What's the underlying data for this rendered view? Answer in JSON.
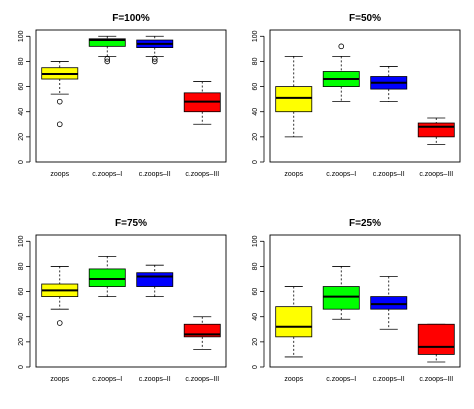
{
  "chart_data": [
    {
      "type": "box",
      "title": "F=100%",
      "ylim": [
        0,
        105
      ],
      "yticks": [
        0,
        20,
        40,
        60,
        80,
        100
      ],
      "categories": [
        "zoops",
        "c.zoops–I",
        "c.zoops–II",
        "c.zoops–III"
      ],
      "colors": [
        "#ffff00",
        "#00ff00",
        "#0000ff",
        "#ff0000"
      ],
      "boxes": [
        {
          "min": 54,
          "q1": 66,
          "median": 70,
          "q3": 75,
          "max": 80,
          "outliers": [
            48,
            30
          ]
        },
        {
          "min": 84,
          "q1": 92,
          "median": 97,
          "q3": 98,
          "max": 100,
          "outliers": [
            82,
            80
          ]
        },
        {
          "min": 84,
          "q1": 91,
          "median": 94,
          "q3": 97,
          "max": 100,
          "outliers": [
            82,
            80
          ]
        },
        {
          "min": 30,
          "q1": 40,
          "median": 48,
          "q3": 55,
          "max": 64,
          "outliers": []
        }
      ]
    },
    {
      "type": "box",
      "title": "F=50%",
      "ylim": [
        0,
        105
      ],
      "yticks": [
        0,
        20,
        40,
        60,
        80,
        100
      ],
      "categories": [
        "zoops",
        "c.zoops–I",
        "c.zoops–II",
        "c.zoops–III"
      ],
      "colors": [
        "#ffff00",
        "#00ff00",
        "#0000ff",
        "#ff0000"
      ],
      "boxes": [
        {
          "min": 20,
          "q1": 40,
          "median": 51,
          "q3": 60,
          "max": 84,
          "outliers": []
        },
        {
          "min": 48,
          "q1": 60,
          "median": 66,
          "q3": 72,
          "max": 84,
          "outliers": [
            92
          ]
        },
        {
          "min": 48,
          "q1": 58,
          "median": 63,
          "q3": 68,
          "max": 76,
          "outliers": []
        },
        {
          "min": 14,
          "q1": 20,
          "median": 28,
          "q3": 31,
          "max": 35,
          "outliers": []
        }
      ]
    },
    {
      "type": "box",
      "title": "F=75%",
      "ylim": [
        0,
        105
      ],
      "yticks": [
        0,
        20,
        40,
        60,
        80,
        100
      ],
      "categories": [
        "zoops",
        "c.zoops–I",
        "c.zoops–II",
        "c.zoops–III"
      ],
      "colors": [
        "#ffff00",
        "#00ff00",
        "#0000ff",
        "#ff0000"
      ],
      "boxes": [
        {
          "min": 46,
          "q1": 56,
          "median": 61,
          "q3": 66,
          "max": 80,
          "outliers": [
            35
          ]
        },
        {
          "min": 56,
          "q1": 64,
          "median": 70,
          "q3": 78,
          "max": 88,
          "outliers": []
        },
        {
          "min": 56,
          "q1": 64,
          "median": 72,
          "q3": 75,
          "max": 81,
          "outliers": []
        },
        {
          "min": 14,
          "q1": 24,
          "median": 26,
          "q3": 34,
          "max": 40,
          "outliers": []
        }
      ]
    },
    {
      "type": "box",
      "title": "F=25%",
      "ylim": [
        0,
        105
      ],
      "yticks": [
        0,
        20,
        40,
        60,
        80,
        100
      ],
      "categories": [
        "zoops",
        "c.zoops–I",
        "c.zoops–II",
        "c.zoops–III"
      ],
      "colors": [
        "#ffff00",
        "#00ff00",
        "#0000ff",
        "#ff0000"
      ],
      "boxes": [
        {
          "min": 8,
          "q1": 24,
          "median": 32,
          "q3": 48,
          "max": 64,
          "outliers": []
        },
        {
          "min": 38,
          "q1": 46,
          "median": 56,
          "q3": 64,
          "max": 80,
          "outliers": []
        },
        {
          "min": 30,
          "q1": 46,
          "median": 50,
          "q3": 56,
          "max": 72,
          "outliers": []
        },
        {
          "min": 4,
          "q1": 10,
          "median": 16,
          "q3": 34,
          "max": 34,
          "outliers": []
        }
      ]
    }
  ]
}
